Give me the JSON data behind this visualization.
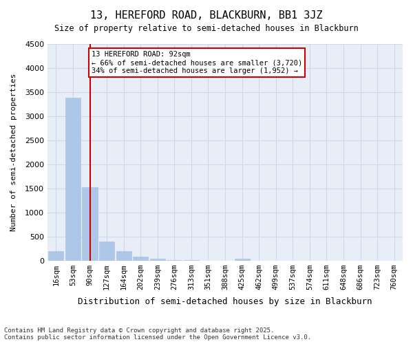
{
  "title_line1": "13, HEREFORD ROAD, BLACKBURN, BB1 3JZ",
  "title_line2": "Size of property relative to semi-detached houses in Blackburn",
  "xlabel": "Distribution of semi-detached houses by size in Blackburn",
  "ylabel": "Number of semi-detached properties",
  "footnote": "Contains HM Land Registry data © Crown copyright and database right 2025.\nContains public sector information licensed under the Open Government Licence v3.0.",
  "bar_labels": [
    "16sqm",
    "53sqm",
    "90sqm",
    "127sqm",
    "164sqm",
    "202sqm",
    "239sqm",
    "276sqm",
    "313sqm",
    "351sqm",
    "388sqm",
    "425sqm",
    "462sqm",
    "499sqm",
    "537sqm",
    "574sqm",
    "611sqm",
    "648sqm",
    "686sqm",
    "723sqm",
    "760sqm"
  ],
  "bar_values": [
    200,
    3380,
    1530,
    390,
    190,
    80,
    30,
    5,
    5,
    0,
    0,
    30,
    0,
    0,
    0,
    0,
    0,
    0,
    0,
    0,
    0
  ],
  "bar_color": "#aec6e8",
  "bar_edge_color": "#aec6e8",
  "grid_color": "#d0d8e8",
  "background_color": "#e8eef8",
  "vline_x": 2,
  "vline_color": "#cc0000",
  "annotation_text": "13 HEREFORD ROAD: 92sqm\n← 66% of semi-detached houses are smaller (3,720)\n34% of semi-detached houses are larger (1,952) →",
  "annotation_box_color": "#cc0000",
  "ylim": [
    0,
    4500
  ],
  "yticks": [
    0,
    500,
    1000,
    1500,
    2000,
    2500,
    3000,
    3500,
    4000,
    4500
  ]
}
